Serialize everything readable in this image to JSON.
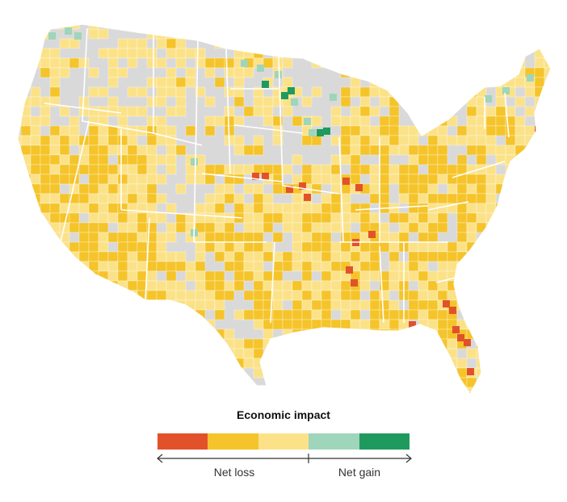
{
  "map": {
    "subject": "Contiguous United States county map",
    "base_color": "#d9d9d9",
    "county_line_color": "#ffffff",
    "legend_categories": [
      {
        "key": "large_loss",
        "color": "#e2522a"
      },
      {
        "key": "moderate_loss",
        "color": "#f5c42a"
      },
      {
        "key": "small_loss",
        "color": "#fbe288"
      },
      {
        "key": "small_gain",
        "color": "#9fd5bb"
      },
      {
        "key": "large_gain",
        "color": "#1f9a5e"
      }
    ]
  },
  "legend": {
    "title": "Economic impact",
    "loss_label": "Net loss",
    "gain_label": "Net gain"
  }
}
